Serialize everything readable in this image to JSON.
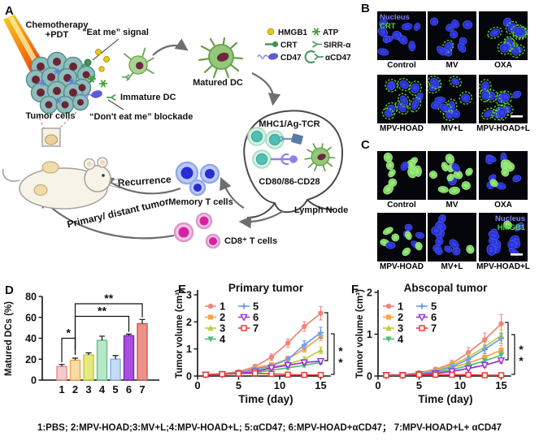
{
  "caption": "1:PBS; 2:MPV-HOAD;3:MV+L;4:MPV-HOAD+L; 5:αCD47; 6:MPV-HOAD+αCD47； 7:MPV-HOAD+L+ αCD47",
  "panel_a": {
    "label": "A",
    "labels": {
      "chemo1": "Chemotherapy",
      "chemo2": "+PDT",
      "eat_me": "“Eat me” signal",
      "immature_dc": "Immature DC",
      "dont_eat_me": "“Don't eat me” blockade",
      "tumor_cells": "Tumor cells",
      "matured_dc": "Matured DC",
      "mhc": "MHC1/Ag-TCR",
      "cd80": "CD80/86-CD28",
      "lymph_node": "Lymph Node",
      "memory_t": "Memory T cells",
      "recurrence": "Recurrence",
      "primary_distant": "Primary/ distant tumor",
      "cd8_t": "CD8⁺ T cells"
    },
    "legend": [
      "HMGB1",
      "ATP",
      "CRT",
      "SIRR-α",
      "CD47",
      "αCD47"
    ]
  },
  "panel_b": {
    "label": "B",
    "overlay": [
      "Nucleus",
      "CRT"
    ],
    "overlay_colors": [
      "#8080F5",
      "#50D838"
    ],
    "tiles": [
      {
        "label": "Control",
        "outline": 0,
        "green": 0
      },
      {
        "label": "MV",
        "outline": 0.08,
        "green": 0
      },
      {
        "label": "OXA",
        "outline": 0.85,
        "green": 0
      },
      {
        "label": "MPV-HOAD",
        "outline": 0.85,
        "green": 0
      },
      {
        "label": "MV+L",
        "outline": 0.6,
        "green": 0
      },
      {
        "label": "MPV-HOAD+L",
        "outline": 0.9,
        "green": 0,
        "scalebar": true
      }
    ]
  },
  "panel_c": {
    "label": "C",
    "overlay": [
      "Nucleus",
      "HMGB1"
    ],
    "overlay_colors": [
      "#8080F5",
      "#50D838"
    ],
    "tiles": [
      {
        "label": "Control",
        "outline": 0,
        "green": 0.88
      },
      {
        "label": "MV",
        "outline": 0,
        "green": 0.88
      },
      {
        "label": "OXA",
        "outline": 0,
        "green": 0.5
      },
      {
        "label": "MPV-HOAD",
        "outline": 0,
        "green": 0.42
      },
      {
        "label": "MV+L",
        "outline": 0,
        "green": 0.28
      },
      {
        "label": "MPV-HOAD+L",
        "outline": 0,
        "green": 0.04,
        "scalebar": true,
        "overlay_here": true
      }
    ]
  },
  "chart_data": [
    {
      "id": "D",
      "type": "bar",
      "panel_label": "D",
      "title": "",
      "xlabel": "",
      "ylabel": "Matured DCs (%)",
      "ylim": [
        0,
        80
      ],
      "yticks": [
        0,
        20,
        40,
        60,
        80
      ],
      "categories": [
        "1",
        "2",
        "3",
        "4",
        "5",
        "6",
        "7"
      ],
      "values": [
        13,
        19,
        24,
        38,
        20,
        42.5,
        54
      ],
      "errors": [
        2,
        2,
        2,
        4,
        3.5,
        1.5,
        4
      ],
      "fills": [
        "#F6C9CB",
        "#F8DCA6",
        "#E5E97E",
        "#B7E8C9",
        "#C6DBF7",
        "#A94FE0",
        "#EC938A"
      ],
      "strokes": [
        "#DE8E8A",
        "#E8A84D",
        "#BFC93A",
        "#66BE85",
        "#84ACE8",
        "#7A1FB8",
        "#D2574C"
      ],
      "significance": [
        {
          "i1": 0,
          "i2": 1,
          "y": 40,
          "d1": 17,
          "d2": 24,
          "label": "*"
        },
        {
          "i1": 1,
          "i2": 5,
          "y": 61,
          "d1": 29,
          "d2": 46,
          "label": "**"
        },
        {
          "i1": 1,
          "i2": 6,
          "y": 73,
          "d1": 29,
          "d2": 60,
          "label": "**"
        }
      ]
    },
    {
      "id": "E",
      "type": "line",
      "panel_label": "E",
      "title": "Primary tumor",
      "title_color": "#18189A",
      "xlabel": "Time (day)",
      "ylabel": "Tumor volume (cm³)",
      "xlim": [
        0,
        16
      ],
      "xticks": [
        0,
        5,
        10,
        15
      ],
      "ylim": [
        0,
        3
      ],
      "yticks": [
        0,
        1,
        2,
        3
      ],
      "x": [
        1,
        3,
        5,
        7,
        9,
        11,
        13,
        15
      ],
      "series": [
        {
          "name": "1",
          "color": "#F2837B",
          "marker": "circle",
          "values": [
            0.05,
            0.09,
            0.16,
            0.35,
            0.7,
            1.22,
            1.83,
            2.32
          ],
          "errors": [
            0.03,
            0.03,
            0.05,
            0.08,
            0.12,
            0.15,
            0.18,
            0.25
          ]
        },
        {
          "name": "2",
          "color": "#F5A54A",
          "marker": "square",
          "values": [
            0.05,
            0.08,
            0.13,
            0.3,
            0.42,
            0.63,
            1.0,
            1.45
          ],
          "errors": [
            0.03,
            0.03,
            0.04,
            0.06,
            0.08,
            0.1,
            0.12,
            0.15
          ]
        },
        {
          "name": "3",
          "color": "#C2CC3B",
          "marker": "tri-up",
          "values": [
            0.05,
            0.07,
            0.11,
            0.22,
            0.32,
            0.45,
            0.62,
            0.95
          ],
          "errors": [
            0.02,
            0.02,
            0.03,
            0.05,
            0.06,
            0.08,
            0.1,
            0.12
          ]
        },
        {
          "name": "4",
          "color": "#4FBF73",
          "marker": "tri-down",
          "values": [
            0.05,
            0.06,
            0.09,
            0.12,
            0.22,
            0.3,
            0.4,
            0.5
          ],
          "errors": [
            0.02,
            0.02,
            0.03,
            0.04,
            0.05,
            0.06,
            0.07,
            0.08
          ]
        },
        {
          "name": "5",
          "color": "#6E9BF0",
          "marker": "plus",
          "values": [
            0.05,
            0.08,
            0.12,
            0.26,
            0.36,
            0.62,
            1.15,
            1.6
          ],
          "errors": [
            0.02,
            0.03,
            0.04,
            0.06,
            0.08,
            0.1,
            0.15,
            0.2
          ]
        },
        {
          "name": "6",
          "color": "#9330D8",
          "marker": "tri-down-open",
          "values": [
            0.05,
            0.07,
            0.1,
            0.16,
            0.3,
            0.4,
            0.5,
            0.55
          ],
          "errors": [
            0.02,
            0.02,
            0.03,
            0.04,
            0.05,
            0.06,
            0.07,
            0.09
          ]
        },
        {
          "name": "7",
          "color": "#EE3B33",
          "marker": "square-open",
          "values": [
            0.05,
            0.07,
            0.09,
            0.1,
            0.08,
            0.05,
            0.04,
            0.04
          ],
          "errors": [
            0.02,
            0.02,
            0.02,
            0.03,
            0.03,
            0.02,
            0.02,
            0.02
          ]
        }
      ],
      "significance": [
        "*",
        "*"
      ]
    },
    {
      "id": "F",
      "type": "line",
      "panel_label": "F",
      "title": "Abscopal tumor",
      "title_color": "#18189A",
      "xlabel": "Time (day)",
      "ylabel": "Tumor volume (cm³)",
      "xlim": [
        0,
        16
      ],
      "xticks": [
        0,
        5,
        10,
        15
      ],
      "ylim": [
        0,
        2
      ],
      "yticks": [
        0,
        1,
        2
      ],
      "x": [
        1,
        3,
        5,
        7,
        9,
        11,
        13,
        15
      ],
      "series": [
        {
          "name": "1",
          "color": "#F2837B",
          "marker": "circle",
          "values": [
            0.02,
            0.03,
            0.08,
            0.16,
            0.3,
            0.56,
            0.87,
            1.25
          ],
          "errors": [
            0.01,
            0.02,
            0.03,
            0.05,
            0.08,
            0.12,
            0.16,
            0.22
          ]
        },
        {
          "name": "2",
          "color": "#F5A54A",
          "marker": "square",
          "values": [
            0.02,
            0.03,
            0.05,
            0.1,
            0.2,
            0.31,
            0.45,
            0.62
          ],
          "errors": [
            0.01,
            0.02,
            0.02,
            0.04,
            0.05,
            0.07,
            0.09,
            0.11
          ]
        },
        {
          "name": "3",
          "color": "#C2CC3B",
          "marker": "tri-up",
          "values": [
            0.02,
            0.03,
            0.06,
            0.13,
            0.26,
            0.45,
            0.7,
            0.97
          ],
          "errors": [
            0.01,
            0.02,
            0.02,
            0.04,
            0.06,
            0.08,
            0.1,
            0.13
          ]
        },
        {
          "name": "4",
          "color": "#4FBF73",
          "marker": "tri-down",
          "values": [
            0.02,
            0.03,
            0.04,
            0.08,
            0.15,
            0.25,
            0.36,
            0.5
          ],
          "errors": [
            0.01,
            0.01,
            0.02,
            0.03,
            0.04,
            0.05,
            0.06,
            0.08
          ]
        },
        {
          "name": "5",
          "color": "#6E9BF0",
          "marker": "plus",
          "values": [
            0.02,
            0.03,
            0.05,
            0.11,
            0.22,
            0.4,
            0.64,
            0.9
          ],
          "errors": [
            0.01,
            0.02,
            0.02,
            0.04,
            0.05,
            0.08,
            0.1,
            0.12
          ]
        },
        {
          "name": "6",
          "color": "#9330D8",
          "marker": "tri-down-open",
          "values": [
            0.02,
            0.02,
            0.04,
            0.06,
            0.11,
            0.18,
            0.26,
            0.37
          ],
          "errors": [
            0.01,
            0.01,
            0.02,
            0.02,
            0.03,
            0.04,
            0.05,
            0.06
          ]
        },
        {
          "name": "7",
          "color": "#EE3B33",
          "marker": "square-open",
          "values": [
            0.02,
            0.02,
            0.03,
            0.03,
            0.03,
            0.03,
            0.02,
            0.02
          ],
          "errors": [
            0.01,
            0.01,
            0.01,
            0.01,
            0.01,
            0.01,
            0.01,
            0.01
          ]
        }
      ],
      "significance": [
        "*",
        "*"
      ]
    }
  ]
}
